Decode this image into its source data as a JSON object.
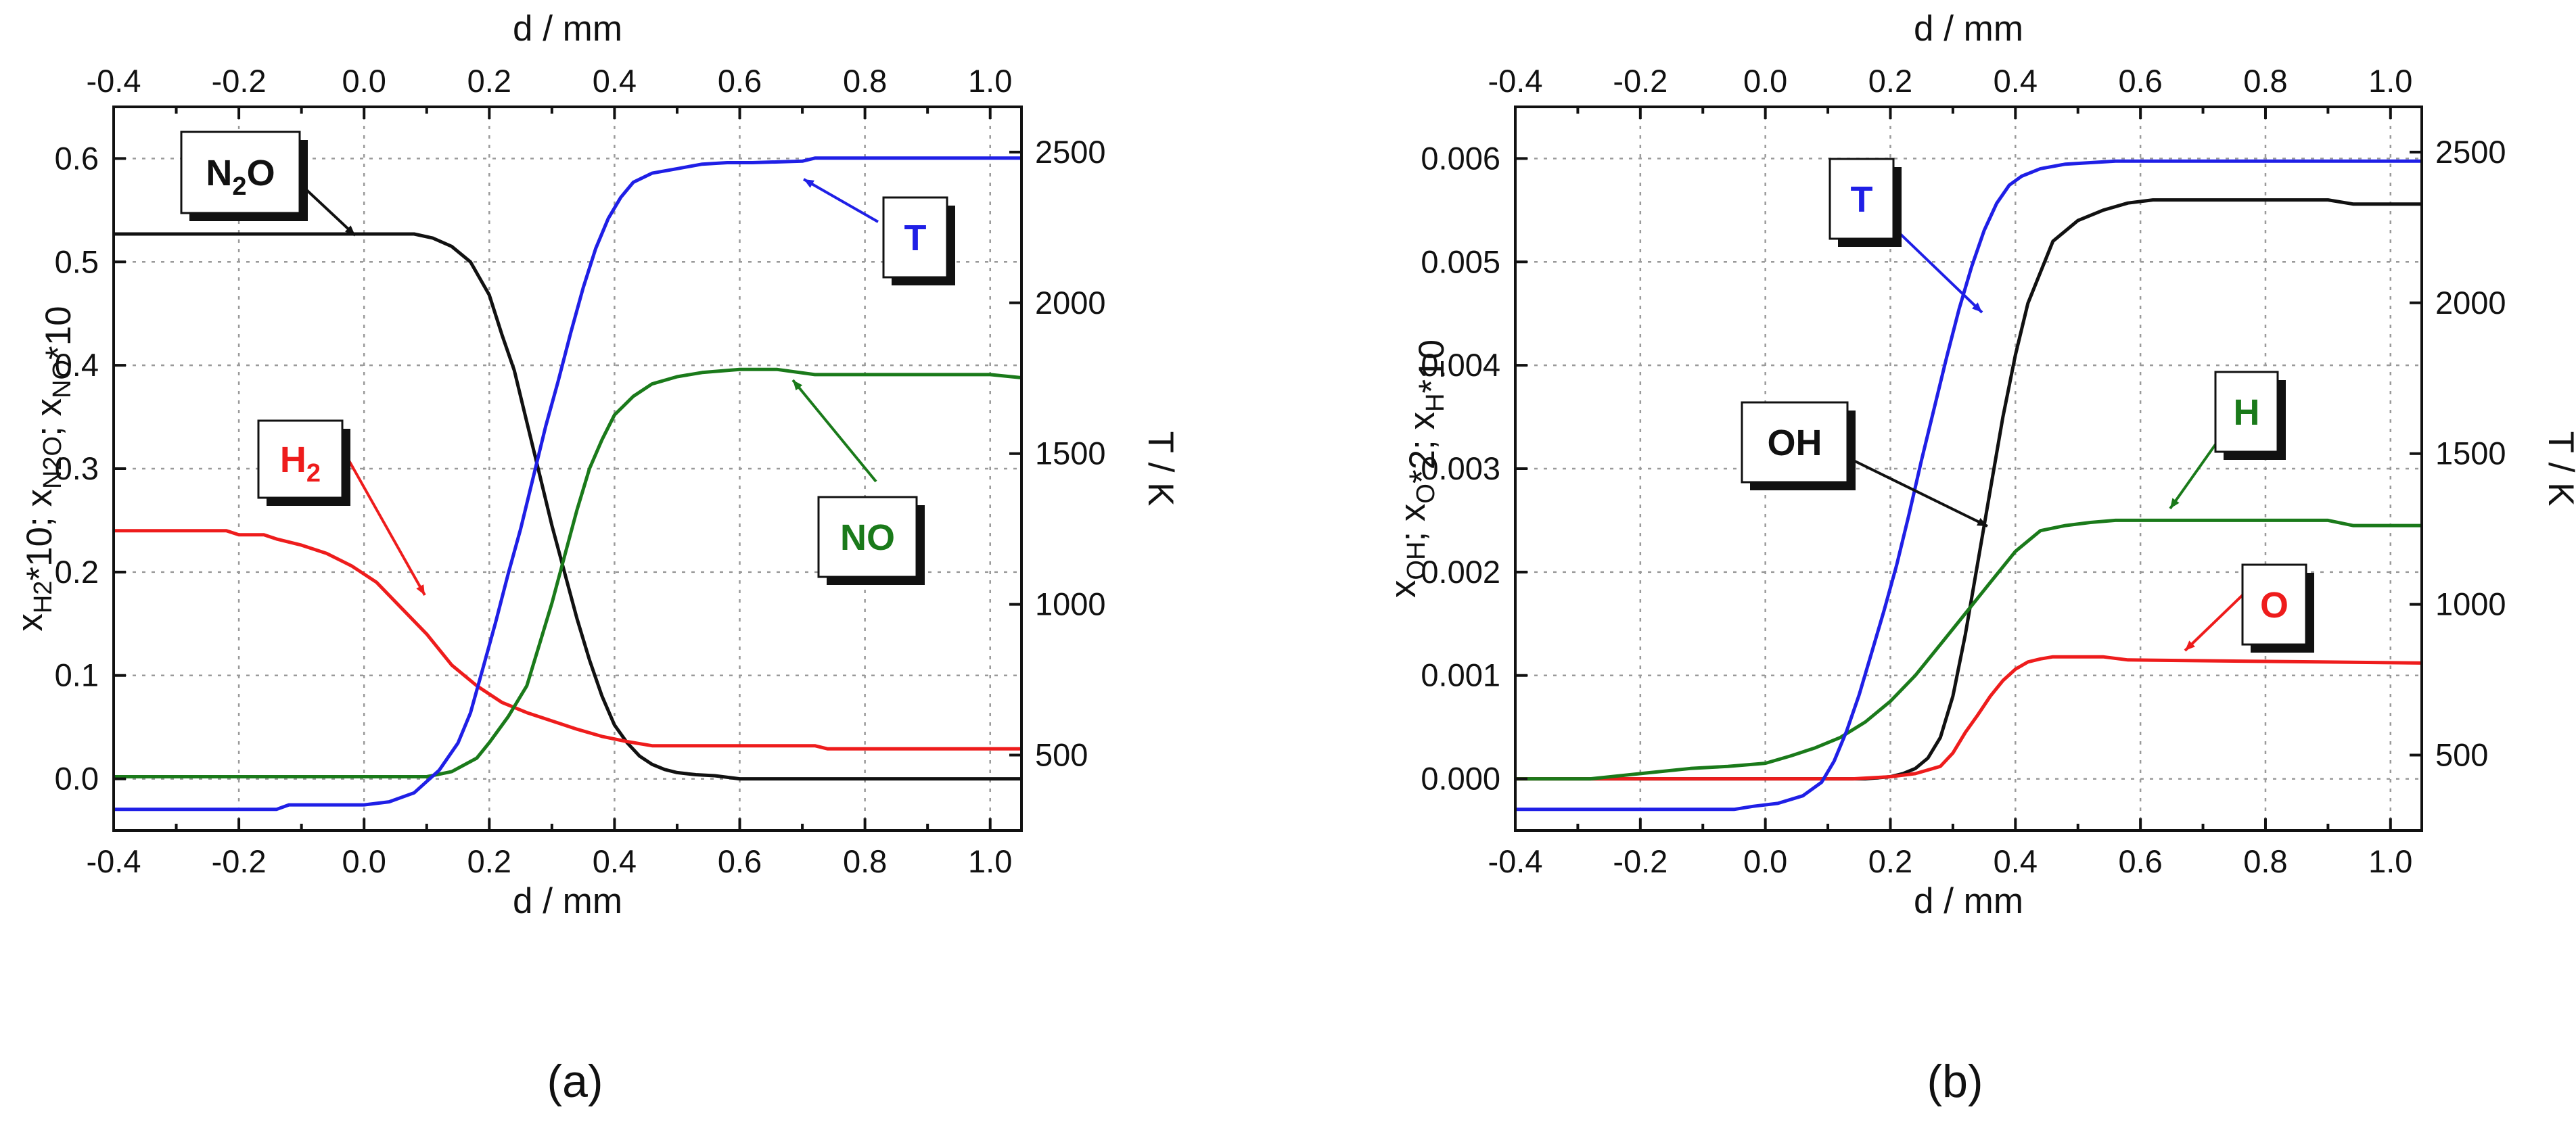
{
  "colors": {
    "black": "#111111",
    "blue": "#1f1fe6",
    "red": "#ee1c1c",
    "green": "#1a7a1a"
  },
  "chart_data": [
    {
      "type": "line",
      "panel": "a",
      "caption": "(a)",
      "xlabel": "d / mm",
      "xlabel_top": "d / mm",
      "ylabel": "x_H2*10; x_N2O; x_NO*10",
      "ylabel_right": "T / K",
      "xlim": [
        -0.4,
        1.05
      ],
      "ylim": [
        -0.05,
        0.65
      ],
      "ylim_right": [
        250,
        2650
      ],
      "x_ticks": [
        "-0.4",
        "-0.2",
        "0.0",
        "0.2",
        "0.4",
        "0.6",
        "0.8",
        "1.0"
      ],
      "y_ticks": [
        "0.0",
        "0.1",
        "0.2",
        "0.3",
        "0.4",
        "0.5",
        "0.6"
      ],
      "y_right_ticks": [
        "500",
        "1000",
        "1500",
        "2000",
        "2500"
      ],
      "grid": true,
      "series": [
        {
          "name": "N2O",
          "color": "#111111",
          "axis": "left",
          "x": [
            -0.4,
            0.0,
            0.08,
            0.11,
            0.14,
            0.17,
            0.2,
            0.22,
            0.24,
            0.26,
            0.28,
            0.3,
            0.32,
            0.34,
            0.36,
            0.38,
            0.4,
            0.42,
            0.44,
            0.46,
            0.48,
            0.5,
            0.53,
            0.56,
            0.6,
            1.05
          ],
          "y": [
            0.527,
            0.527,
            0.527,
            0.523,
            0.515,
            0.5,
            0.468,
            0.43,
            0.395,
            0.345,
            0.295,
            0.245,
            0.2,
            0.155,
            0.115,
            0.08,
            0.052,
            0.035,
            0.022,
            0.014,
            0.009,
            0.006,
            0.004,
            0.003,
            0.0,
            0.0
          ]
        },
        {
          "name": "H2",
          "color": "#ee1c1c",
          "axis": "left",
          "x": [
            -0.4,
            -0.22,
            -0.2,
            -0.16,
            -0.14,
            -0.1,
            -0.06,
            -0.02,
            0.02,
            0.06,
            0.1,
            0.14,
            0.18,
            0.22,
            0.26,
            0.3,
            0.34,
            0.38,
            0.42,
            0.46,
            0.72,
            0.74,
            1.05
          ],
          "y": [
            0.24,
            0.24,
            0.236,
            0.236,
            0.232,
            0.226,
            0.218,
            0.206,
            0.19,
            0.165,
            0.14,
            0.11,
            0.09,
            0.074,
            0.064,
            0.056,
            0.048,
            0.041,
            0.036,
            0.032,
            0.032,
            0.029,
            0.029
          ]
        },
        {
          "name": "NO",
          "color": "#1a7a1a",
          "axis": "left",
          "x": [
            -0.4,
            0.1,
            0.14,
            0.18,
            0.2,
            0.23,
            0.26,
            0.28,
            0.3,
            0.32,
            0.34,
            0.36,
            0.38,
            0.4,
            0.43,
            0.46,
            0.5,
            0.54,
            0.6,
            0.66,
            0.72,
            1.0,
            1.05
          ],
          "y": [
            0.002,
            0.002,
            0.007,
            0.02,
            0.035,
            0.06,
            0.09,
            0.13,
            0.17,
            0.215,
            0.26,
            0.3,
            0.328,
            0.352,
            0.37,
            0.382,
            0.389,
            0.393,
            0.396,
            0.396,
            0.391,
            0.391,
            0.388
          ]
        },
        {
          "name": "T",
          "color": "#1f1fe6",
          "axis": "right",
          "x": [
            -0.4,
            -0.14,
            -0.12,
            0.0,
            0.04,
            0.08,
            0.12,
            0.15,
            0.17,
            0.19,
            0.21,
            0.23,
            0.25,
            0.27,
            0.29,
            0.31,
            0.33,
            0.35,
            0.37,
            0.39,
            0.41,
            0.43,
            0.46,
            0.5,
            0.54,
            0.58,
            0.62,
            0.7,
            0.72,
            1.05
          ],
          "y": [
            320,
            320,
            335,
            335,
            345,
            375,
            450,
            540,
            640,
            790,
            940,
            1100,
            1250,
            1420,
            1590,
            1740,
            1900,
            2050,
            2180,
            2280,
            2350,
            2400,
            2430,
            2445,
            2460,
            2465,
            2465,
            2470,
            2480,
            2480
          ]
        }
      ],
      "annotations": [
        {
          "label": "N",
          "sub": "2",
          "tail": "O",
          "color": "#111111"
        },
        {
          "label": "T",
          "sub": "",
          "tail": "",
          "color": "#1f1fe6"
        },
        {
          "label": "H",
          "sub": "2",
          "tail": "",
          "color": "#ee1c1c"
        },
        {
          "label": "NO",
          "sub": "",
          "tail": "",
          "color": "#1a7a1a"
        }
      ]
    },
    {
      "type": "line",
      "panel": "b",
      "caption": "(b)",
      "xlabel": "d / mm",
      "xlabel_top": "d / mm",
      "ylabel": "x_OH; x_O*2; x_H*10",
      "ylabel_right": "T / K",
      "xlim": [
        -0.4,
        1.05
      ],
      "ylim": [
        -0.0005,
        0.0065
      ],
      "ylim_right": [
        250,
        2650
      ],
      "x_ticks": [
        "-0.4",
        "-0.2",
        "0.0",
        "0.2",
        "0.4",
        "0.6",
        "0.8",
        "1.0"
      ],
      "y_ticks": [
        "0.000",
        "0.001",
        "0.002",
        "0.003",
        "0.004",
        "0.005",
        "0.006"
      ],
      "y_right_ticks": [
        "500",
        "1000",
        "1500",
        "2000",
        "2500"
      ],
      "grid": true,
      "series": [
        {
          "name": "OH",
          "color": "#111111",
          "axis": "left",
          "x": [
            -0.4,
            0.16,
            0.2,
            0.22,
            0.24,
            0.26,
            0.28,
            0.3,
            0.32,
            0.34,
            0.36,
            0.38,
            0.4,
            0.42,
            0.44,
            0.46,
            0.5,
            0.54,
            0.58,
            0.62,
            0.9,
            0.94,
            1.05
          ],
          "y": [
            0.0,
            0.0,
            2e-05,
            5e-05,
            0.0001,
            0.0002,
            0.0004,
            0.0008,
            0.0014,
            0.0021,
            0.0028,
            0.0035,
            0.0041,
            0.0046,
            0.0049,
            0.0052,
            0.0054,
            0.0055,
            0.00557,
            0.0056,
            0.0056,
            0.00556,
            0.00556
          ]
        },
        {
          "name": "O",
          "color": "#ee1c1c",
          "axis": "left",
          "x": [
            -0.4,
            0.14,
            0.2,
            0.24,
            0.28,
            0.3,
            0.32,
            0.34,
            0.36,
            0.38,
            0.4,
            0.42,
            0.44,
            0.46,
            0.54,
            0.58,
            1.05
          ],
          "y": [
            0.0,
            0.0,
            2e-05,
            5e-05,
            0.00012,
            0.00025,
            0.00045,
            0.00062,
            0.0008,
            0.00095,
            0.00106,
            0.00113,
            0.00116,
            0.00118,
            0.00118,
            0.00115,
            0.00112
          ]
        },
        {
          "name": "H",
          "color": "#1a7a1a",
          "axis": "left",
          "x": [
            -0.4,
            -0.28,
            -0.2,
            -0.12,
            -0.06,
            0.0,
            0.04,
            0.08,
            0.12,
            0.16,
            0.2,
            0.24,
            0.28,
            0.32,
            0.36,
            0.4,
            0.44,
            0.48,
            0.52,
            0.56,
            0.9,
            0.94,
            1.05
          ],
          "y": [
            0.0,
            0.0,
            5e-05,
            0.0001,
            0.00012,
            0.00015,
            0.00022,
            0.0003,
            0.0004,
            0.00055,
            0.00075,
            0.001,
            0.0013,
            0.0016,
            0.0019,
            0.0022,
            0.0024,
            0.00245,
            0.00248,
            0.0025,
            0.0025,
            0.00245,
            0.00245
          ]
        },
        {
          "name": "T",
          "color": "#1f1fe6",
          "axis": "right",
          "x": [
            -0.4,
            -0.05,
            -0.02,
            0.02,
            0.06,
            0.09,
            0.11,
            0.13,
            0.15,
            0.17,
            0.19,
            0.21,
            0.23,
            0.25,
            0.27,
            0.29,
            0.31,
            0.33,
            0.35,
            0.37,
            0.39,
            0.41,
            0.44,
            0.48,
            0.52,
            0.56,
            0.6,
            1.05
          ],
          "y": [
            320,
            320,
            330,
            340,
            365,
            410,
            480,
            580,
            700,
            840,
            980,
            1130,
            1300,
            1480,
            1650,
            1820,
            1980,
            2120,
            2240,
            2330,
            2390,
            2420,
            2445,
            2460,
            2465,
            2470,
            2470,
            2470
          ]
        }
      ],
      "annotations": [
        {
          "label": "T",
          "sub": "",
          "tail": "",
          "color": "#1f1fe6"
        },
        {
          "label": "OH",
          "sub": "",
          "tail": "",
          "color": "#111111"
        },
        {
          "label": "H",
          "sub": "",
          "tail": "",
          "color": "#1a7a1a"
        },
        {
          "label": "O",
          "sub": "",
          "tail": "",
          "color": "#ee1c1c"
        }
      ]
    }
  ]
}
